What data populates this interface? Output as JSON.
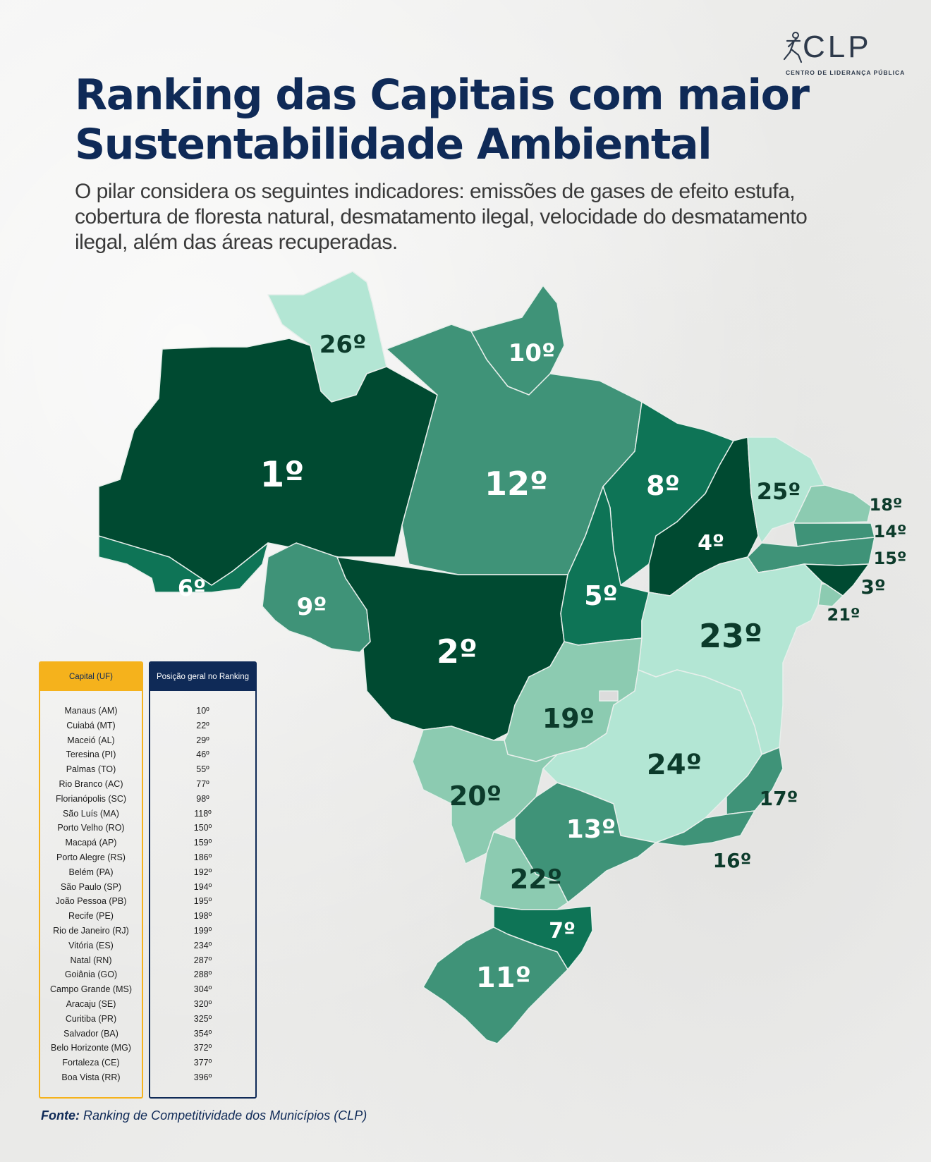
{
  "logo": {
    "text": "CLP",
    "subtitle": "CENTRO DE LIDERANÇA PÚBLICA"
  },
  "title": {
    "line1": "Ranking das Capitais com maior",
    "line2": "Sustentabilidade Ambiental"
  },
  "subtitle": "O pilar considera os seguintes indicadores: emissões de gases de efeito estufa, cobertura de floresta natural, desmatamento ilegal, velocidade do desmatamento ilegal, além das áreas recuperadas.",
  "colors": {
    "title": "#0f2a57",
    "darkest_green": "#004a31",
    "dark_green": "#0e7456",
    "medium_green": "#3f9378",
    "light_green": "#8ccbb1",
    "pale_green": "#b3e6d4",
    "table_header_capital": "#f5b21c",
    "table_header_position": "#0f2a57"
  },
  "map": {
    "states": [
      {
        "uf": "AM",
        "label": "1º"
      },
      {
        "uf": "MT",
        "label": "2º"
      },
      {
        "uf": "AL",
        "label": "3º"
      },
      {
        "uf": "PI",
        "label": "4º"
      },
      {
        "uf": "TO",
        "label": "5º"
      },
      {
        "uf": "AC",
        "label": "6º"
      },
      {
        "uf": "SC",
        "label": "7º"
      },
      {
        "uf": "MA",
        "label": "8º"
      },
      {
        "uf": "RO",
        "label": "9º"
      },
      {
        "uf": "AP",
        "label": "10º"
      },
      {
        "uf": "RS",
        "label": "11º"
      },
      {
        "uf": "PA",
        "label": "12º"
      },
      {
        "uf": "SP",
        "label": "13º"
      },
      {
        "uf": "PB",
        "label": "14º"
      },
      {
        "uf": "PE",
        "label": "15º"
      },
      {
        "uf": "RJ",
        "label": "16º"
      },
      {
        "uf": "ES",
        "label": "17º"
      },
      {
        "uf": "RN",
        "label": "18º"
      },
      {
        "uf": "GO",
        "label": "19º"
      },
      {
        "uf": "MS",
        "label": "20º"
      },
      {
        "uf": "SE",
        "label": "21º"
      },
      {
        "uf": "PR",
        "label": "22º"
      },
      {
        "uf": "BA",
        "label": "23º"
      },
      {
        "uf": "MG",
        "label": "24º"
      },
      {
        "uf": "CE",
        "label": "25º"
      },
      {
        "uf": "RR",
        "label": "26º"
      }
    ]
  },
  "table": {
    "header_capital": "Capital (UF)",
    "header_position": "Posição geral no Ranking",
    "rows": [
      {
        "capital": "Manaus (AM)",
        "position": "10º"
      },
      {
        "capital": "Cuiabá (MT)",
        "position": "22º"
      },
      {
        "capital": "Maceió (AL)",
        "position": "29º"
      },
      {
        "capital": "Teresina (PI)",
        "position": "46º"
      },
      {
        "capital": "Palmas (TO)",
        "position": "55º"
      },
      {
        "capital": "Rio Branco (AC)",
        "position": "77º"
      },
      {
        "capital": "Florianópolis (SC)",
        "position": "98º"
      },
      {
        "capital": "São Luís (MA)",
        "position": "118º"
      },
      {
        "capital": "Porto Velho (RO)",
        "position": "150º"
      },
      {
        "capital": "Macapá (AP)",
        "position": "159º"
      },
      {
        "capital": "Porto Alegre (RS)",
        "position": "186º"
      },
      {
        "capital": "Belém (PA)",
        "position": "192º"
      },
      {
        "capital": "São Paulo (SP)",
        "position": "194º"
      },
      {
        "capital": "João Pessoa (PB)",
        "position": "195º"
      },
      {
        "capital": "Recife (PE)",
        "position": "198º"
      },
      {
        "capital": "Rio de Janeiro (RJ)",
        "position": "199º"
      },
      {
        "capital": "Vitória (ES)",
        "position": "234º"
      },
      {
        "capital": "Natal (RN)",
        "position": "287º"
      },
      {
        "capital": "Goiânia (GO)",
        "position": "288º"
      },
      {
        "capital": "Campo Grande (MS)",
        "position": "304º"
      },
      {
        "capital": "Aracaju (SE)",
        "position": "320º"
      },
      {
        "capital": "Curitiba (PR)",
        "position": "325º"
      },
      {
        "capital": "Salvador (BA)",
        "position": "354º"
      },
      {
        "capital": "Belo Horizonte (MG)",
        "position": "372º"
      },
      {
        "capital": "Fortaleza (CE)",
        "position": "377º"
      },
      {
        "capital": "Boa Vista (RR)",
        "position": "396º"
      }
    ]
  },
  "source": {
    "label": "Fonte:",
    "text": "Ranking de Competitividade dos  Municípios (CLP)"
  }
}
